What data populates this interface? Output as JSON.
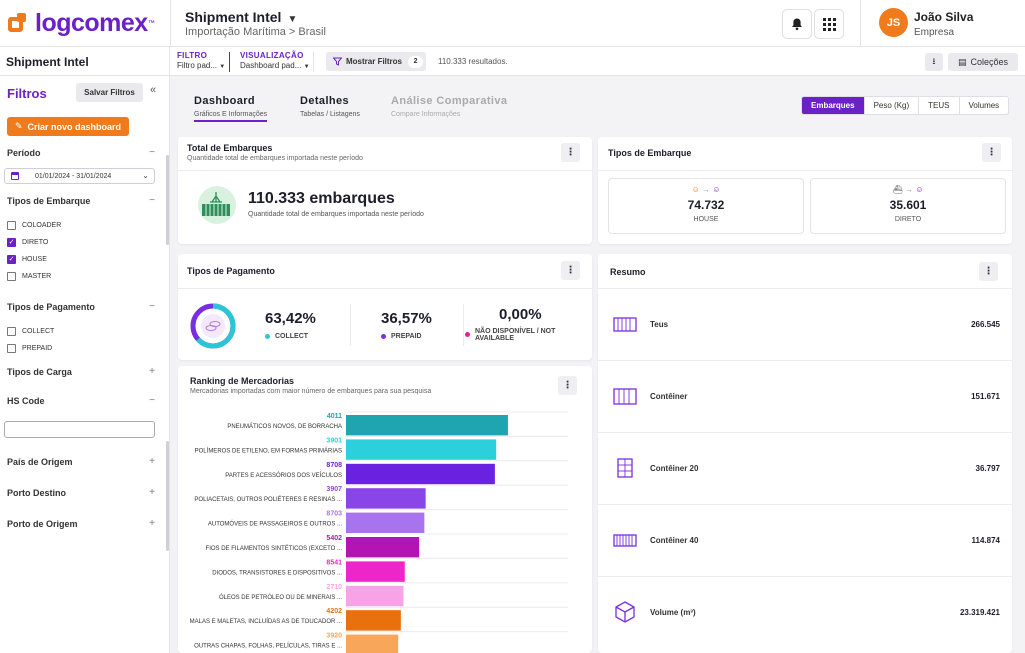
{
  "brand": {
    "name": "logcomex",
    "tm": "™",
    "accent": "#6b21c8",
    "orange": "#f07b1d"
  },
  "header": {
    "title": "Shipment Intel",
    "breadcrumb": "Importação Marítima > Brasil",
    "user": {
      "initials": "JS",
      "name": "João Silva",
      "company": "Empresa"
    }
  },
  "sidebar": {
    "title": "Shipment Intel",
    "filters_heading": "Filtros",
    "save_filters": "Salvar Filtros",
    "create_dashboard": "Criar novo dashboard",
    "periodo": {
      "label": "Período",
      "value": "01/01/2024 - 31/01/2024"
    },
    "tipos_embarque": {
      "label": "Tipos de Embarque",
      "options": [
        {
          "label": "COLOADER",
          "checked": false
        },
        {
          "label": "DIRETO",
          "checked": true
        },
        {
          "label": "HOUSE",
          "checked": true
        },
        {
          "label": "MASTER",
          "checked": false
        }
      ]
    },
    "tipos_pagamento": {
      "label": "Tipos de Pagamento",
      "options": [
        {
          "label": "COLLECT",
          "checked": false
        },
        {
          "label": "PREPAID",
          "checked": false
        }
      ]
    },
    "tipos_carga": "Tipos de Carga",
    "hs_code": "HS Code",
    "pais_origem": "País de Origem",
    "porto_destino": "Porto Destino",
    "porto_origem": "Porto de Origem"
  },
  "filterbar": {
    "filtro_label": "FILTRO",
    "filtro_value": "Filtro pad...",
    "visualizacao_label": "VISUALIZAÇÃO",
    "visualizacao_value": "Dashboard pad...",
    "mostrar_filtros": "Mostrar Filtros",
    "filter_count": "2",
    "results": "110.333 resultados.",
    "colecoes": "Coleções"
  },
  "tabs": [
    {
      "title": "Dashboard",
      "sub": "Gráficos E Informações"
    },
    {
      "title": "Detalhes",
      "sub": "Tabelas / Listagens"
    },
    {
      "title": "Análise Comparativa",
      "sub": "Compare Informações"
    }
  ],
  "metrics": [
    "Embarques",
    "Peso (Kg)",
    "TEUS",
    "Volumes"
  ],
  "total_embarques": {
    "title": "Total de Embarques",
    "subtitle": "Quantidade total de embarques importada neste período",
    "value": "110.333 embarques",
    "caption": "Quantidade total de embarques importada neste período"
  },
  "tipos_embarque_card": {
    "title": "Tipos de Embarque",
    "items": [
      {
        "value": "74.732",
        "label": "HOUSE"
      },
      {
        "value": "35.601",
        "label": "DIRETO"
      }
    ]
  },
  "tipos_pagamento_card": {
    "title": "Tipos de Pagamento",
    "items": [
      {
        "value": "63,42%",
        "label": "COLLECT",
        "color": "#2bc6d6"
      },
      {
        "value": "36,57%",
        "label": "PREPAID",
        "color": "#7a2ee0"
      },
      {
        "value": "0,00%",
        "label": "NÃO DISPONÍVEL / NOT AVAILABLE",
        "color": "#e0219b"
      }
    ]
  },
  "ranking": {
    "title": "Ranking de Mercadorias",
    "subtitle": "Mercadorias importadas com maior número de embarques para sua pesquisa"
  },
  "chart_data": {
    "type": "bar",
    "orientation": "horizontal",
    "title": "Ranking de Mercadorias",
    "categories": [
      "PNEUMÁTICOS NOVOS, DE BORRACHA",
      "POLÍMEROS DE ETILENO, EM FORMAS PRIMÁRIAS",
      "PARTES E ACESSÓRIOS DOS VEÍCULOS",
      "POLIACETAIS, OUTROS POLIÉTERES E RESINAS ...",
      "AUTOMÓVEIS DE PASSAGEIROS E OUTROS ...",
      "FIOS DE FILAMENTOS SINTÉTICOS (EXCETO ...",
      "DIODOS, TRANSISTORES E DISPOSITIVOS ...",
      "ÓLEOS DE PETRÓLEO OU DE MINERAIS ...",
      "MALAS E MALETAS, INCLUÍDAS AS DE TOUCADOR ...",
      "OUTRAS CHAPAS, FOLHAS, PELÍCULAS, TIRAS E ..."
    ],
    "codes": [
      "4011",
      "3901",
      "8708",
      "3907",
      "8703",
      "5402",
      "8541",
      "2710",
      "4202",
      "3920"
    ],
    "values": [
      6200,
      5750,
      5700,
      3050,
      3000,
      2800,
      2250,
      2200,
      2100,
      2000
    ],
    "colors": [
      "#1ea5b0",
      "#2bd0dc",
      "#6b21e0",
      "#8a45e8",
      "#a774ee",
      "#b315b3",
      "#ee25c9",
      "#f7a3e8",
      "#e8700e",
      "#f8a65a"
    ],
    "xlim": [
      0,
      8500
    ],
    "grid": true
  },
  "resumo": {
    "title": "Resumo",
    "rows": [
      {
        "label": "Teus",
        "value": "266.545",
        "icon": "teus-icon"
      },
      {
        "label": "Contêiner",
        "value": "151.671",
        "icon": "container-icon"
      },
      {
        "label": "Contêiner 20",
        "value": "36.797",
        "icon": "container-20-icon"
      },
      {
        "label": "Contêiner 40",
        "value": "114.874",
        "icon": "container-40-icon"
      },
      {
        "label": "Volume (m³)",
        "value": "23.319.421",
        "icon": "volume-icon"
      }
    ]
  }
}
